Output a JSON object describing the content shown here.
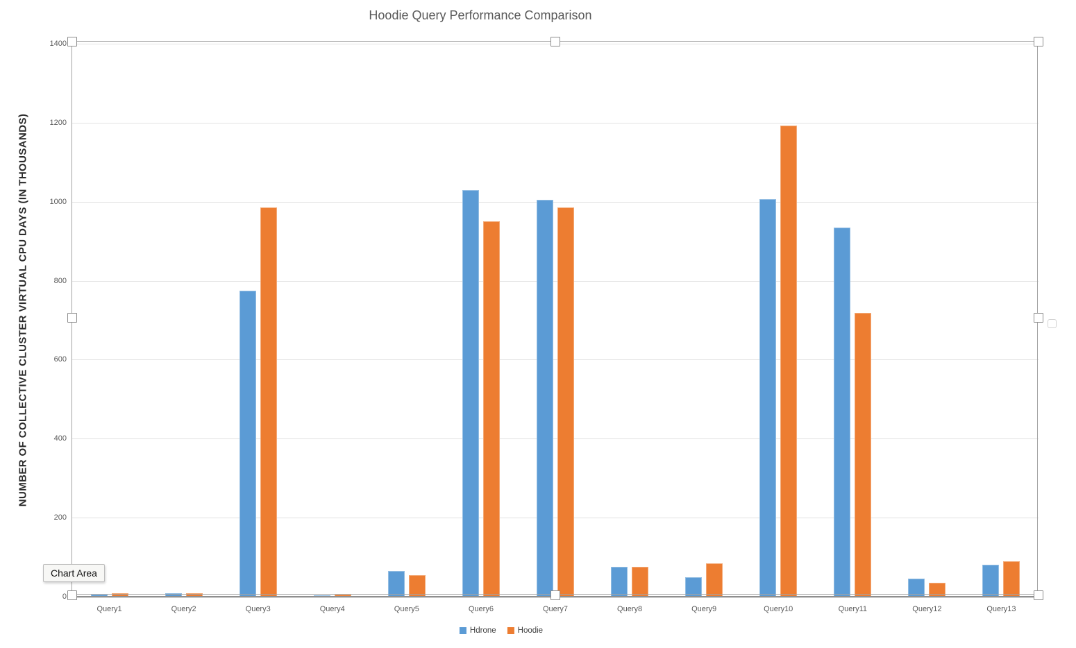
{
  "tooltip": {
    "label": "Chart Area"
  },
  "chart_data": {
    "type": "bar",
    "title": "Hoodie Query Performance Comparison",
    "xlabel": "",
    "ylabel": "NUMBER OF COLLECTIVE CLUSTER VIRTUAL CPU DAYS (IN THOUSANDS)",
    "categories": [
      "Query1",
      "Query2",
      "Query3",
      "Query4",
      "Query5",
      "Query6",
      "Query7",
      "Query8",
      "Query9",
      "Query10",
      "Query11",
      "Query12",
      "Query13"
    ],
    "series": [
      {
        "name": "Hdrone",
        "color": "#5B9BD5",
        "values": [
          5,
          8,
          775,
          4,
          65,
          1030,
          1005,
          75,
          50,
          1007,
          935,
          45,
          80
        ]
      },
      {
        "name": "Hoodie",
        "color": "#ED7D31",
        "values": [
          9,
          8,
          985,
          5,
          55,
          950,
          985,
          75,
          85,
          1193,
          718,
          35,
          90
        ]
      }
    ],
    "ylim": [
      0,
      1400
    ],
    "ytick_step": 200,
    "grid": true,
    "legend_position": "bottom"
  },
  "selection": {
    "state": "chart-selected"
  }
}
